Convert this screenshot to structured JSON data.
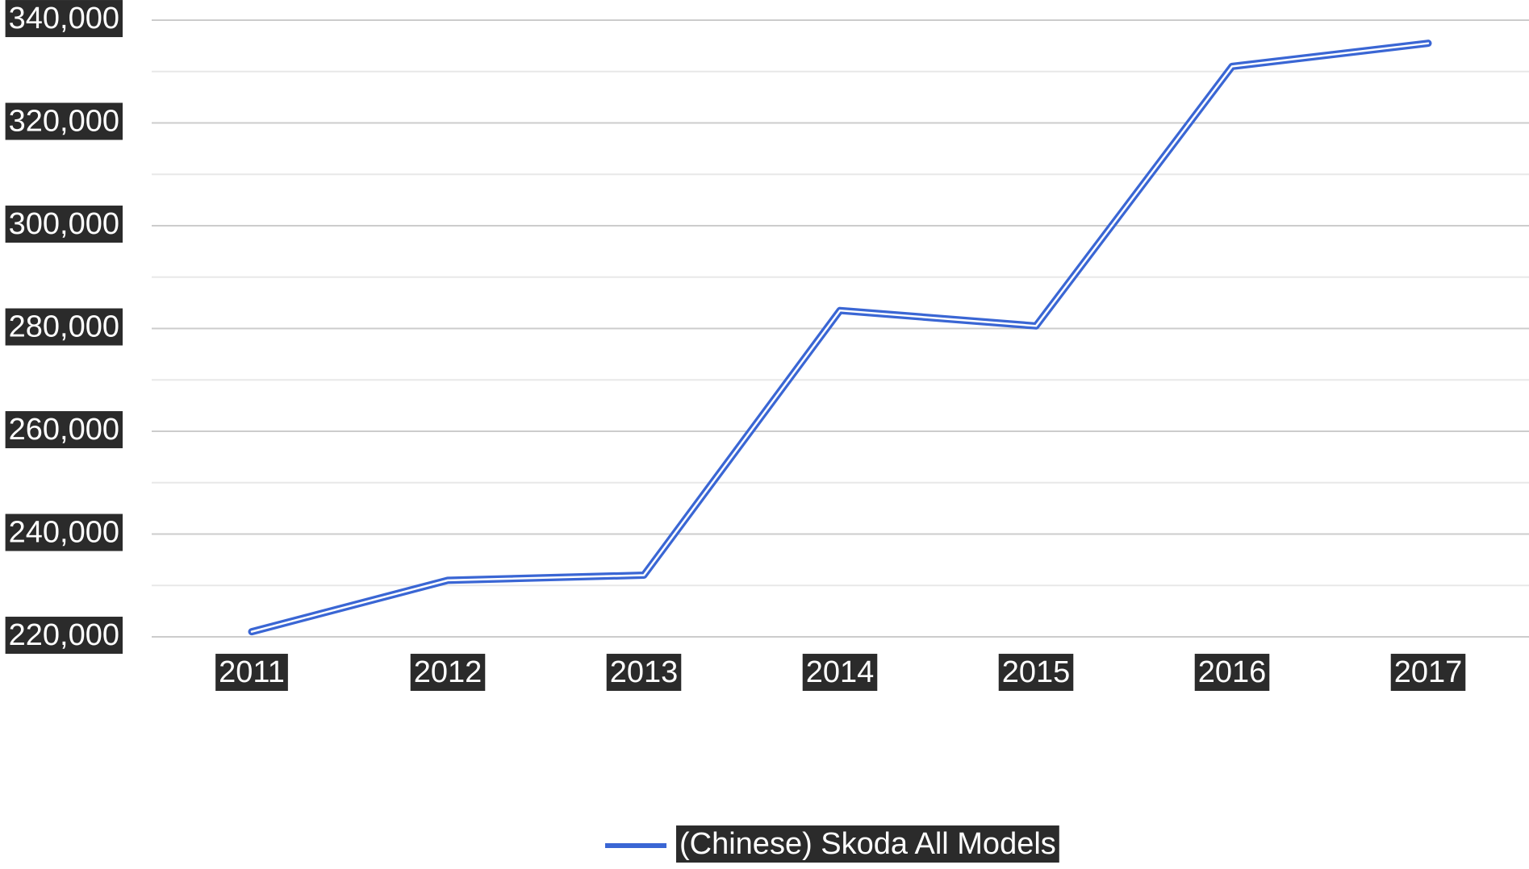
{
  "chart_data": {
    "type": "line",
    "title": "",
    "xlabel": "",
    "ylabel": "",
    "categories": [
      "2011",
      "2012",
      "2013",
      "2014",
      "2015",
      "2016",
      "2017"
    ],
    "series": [
      {
        "name": "(Chinese) Skoda All Models",
        "values": [
          221000,
          231000,
          232000,
          283500,
          280500,
          331000,
          335500
        ]
      }
    ],
    "ylim": [
      220000,
      340000
    ],
    "yticks": [
      "340,000",
      "320,000",
      "300,000",
      "280,000",
      "260,000",
      "240,000",
      "220,000"
    ],
    "ytick_values": [
      340000,
      320000,
      300000,
      280000,
      260000,
      240000,
      220000
    ],
    "grid": true,
    "legend_position": "bottom-center",
    "colors": {
      "series": "#3a66d4",
      "grid_major": "#cccccc",
      "grid_minor": "#e8e8e8",
      "label_background": "#2b2b2b",
      "label_text": "#ffffff"
    }
  }
}
